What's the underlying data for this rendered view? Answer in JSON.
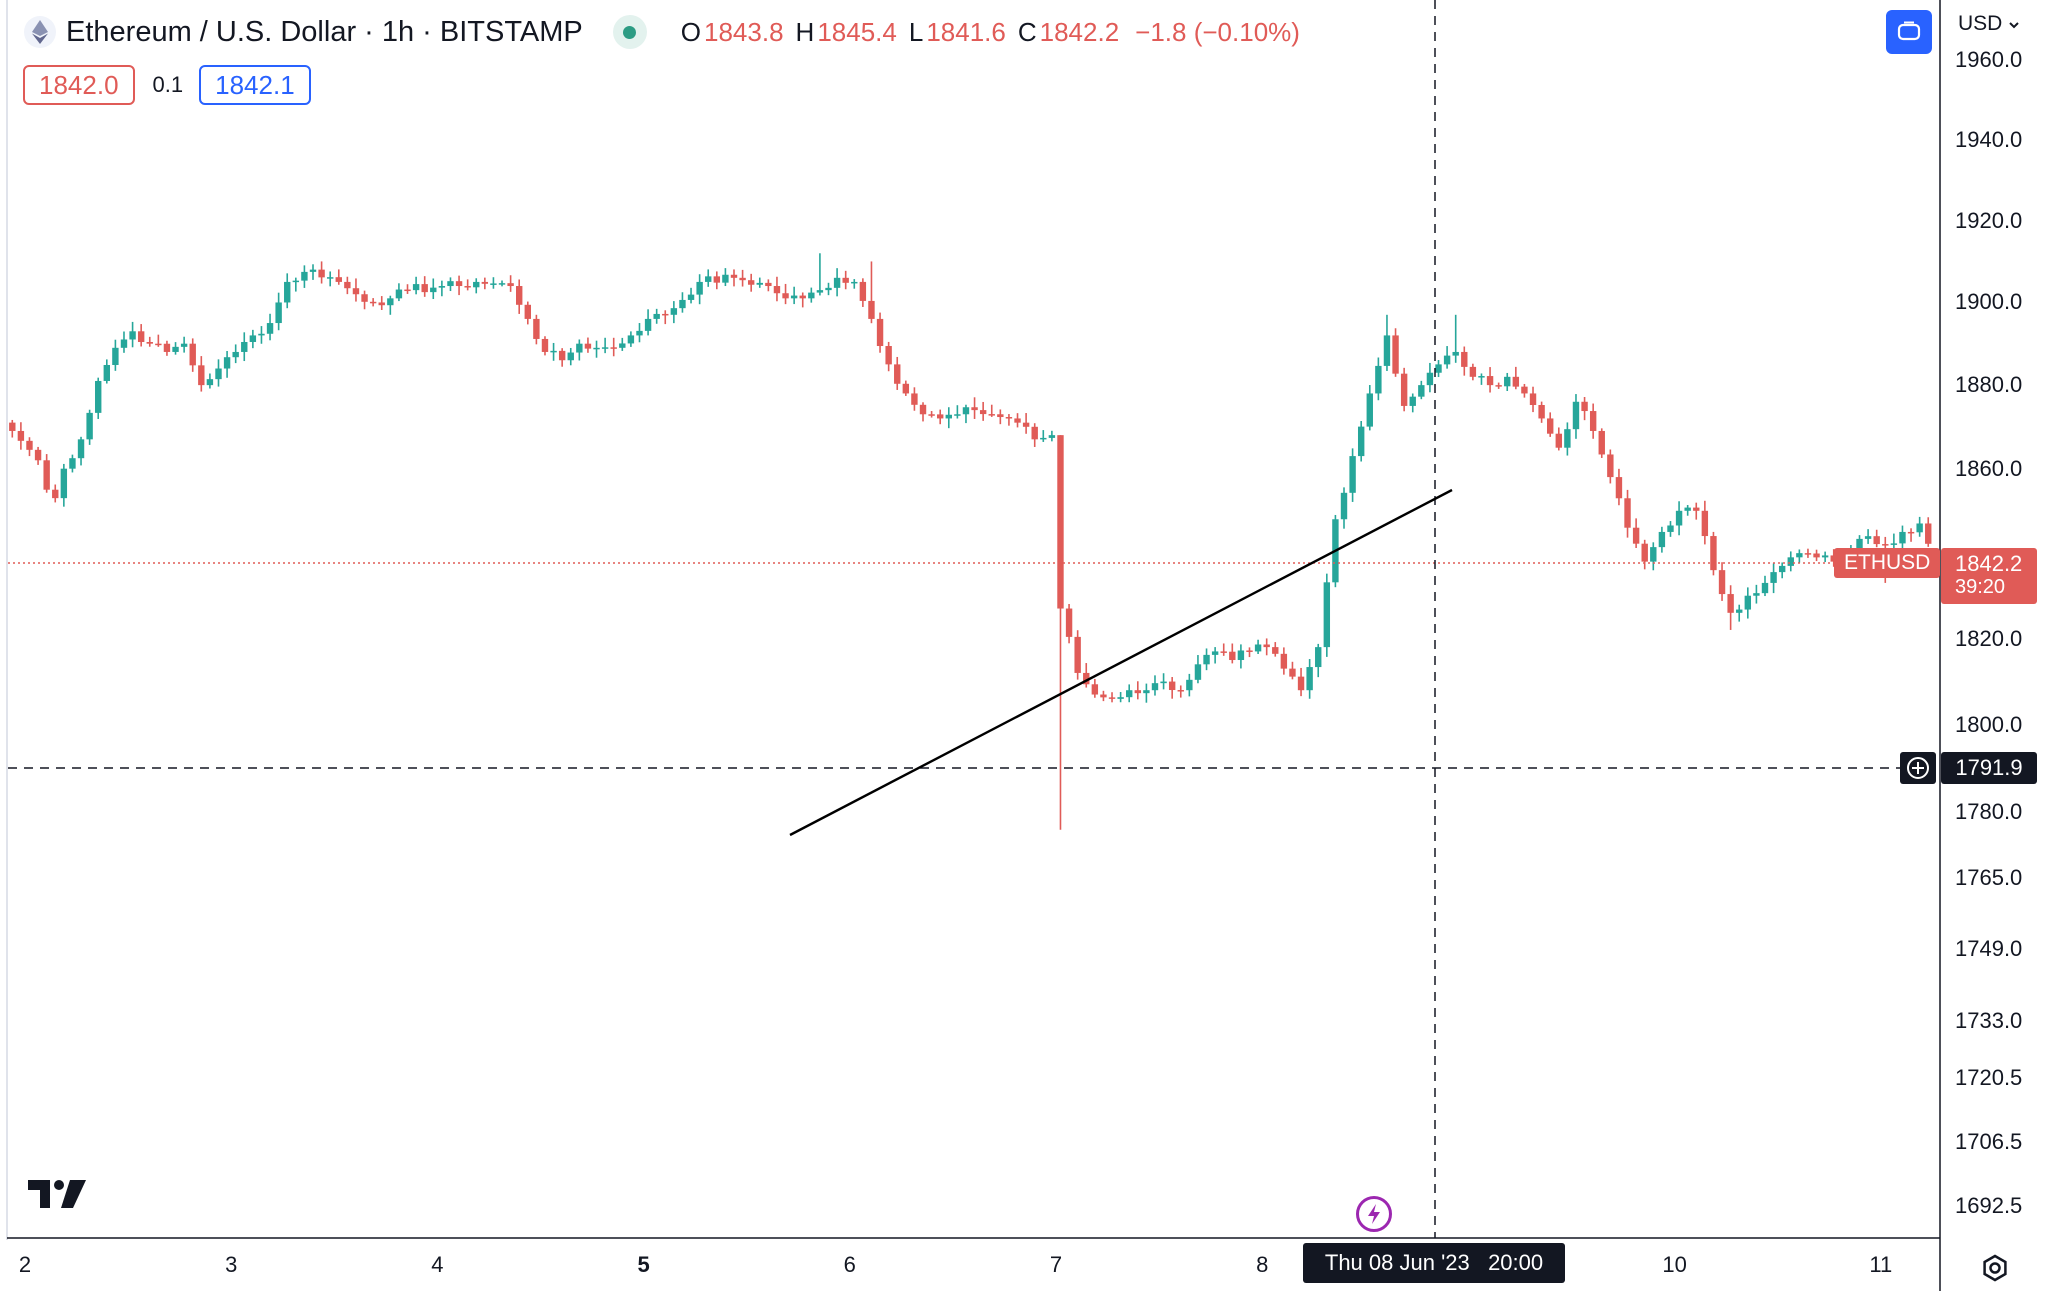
{
  "header": {
    "symbol_title": "Ethereum / U.S. Dollar · 1h · BITSTAMP",
    "ohlc": {
      "open_label": "O",
      "open": "1843.8",
      "high_label": "H",
      "high": "1845.4",
      "low_label": "L",
      "low": "1841.6",
      "close_label": "C",
      "close": "1842.2",
      "change": "−1.8 (−0.10%)"
    },
    "sell_price": "1842.0",
    "spread": "0.1",
    "buy_price": "1842.1",
    "currency": "USD"
  },
  "colors": {
    "up": "#26a69a",
    "down": "#e05b57",
    "accent": "#2962ff",
    "crosshair": "#131722",
    "lightning": "#9c27b0"
  },
  "icons": [
    "ethereum-icon",
    "market-status-dot",
    "fullscreen-icon",
    "chevron-down-icon",
    "tradingview-logo",
    "lightning-icon",
    "plus-icon",
    "settings-icon"
  ],
  "price_axis": {
    "ticks": [
      "1960.0",
      "1940.0",
      "1920.0",
      "1900.0",
      "1880.0",
      "1860.0",
      "1820.0",
      "1800.0",
      "1780.0",
      "1765.0",
      "1749.0",
      "1733.0",
      "1720.5",
      "1706.5",
      "1692.5"
    ],
    "last_price": "1842.2",
    "countdown": "39:20",
    "symbol_label": "ETHUSD",
    "crosshair_price": "1791.9"
  },
  "time_axis": {
    "ticks": [
      {
        "label": "2",
        "bold": false
      },
      {
        "label": "3",
        "bold": false
      },
      {
        "label": "4",
        "bold": false
      },
      {
        "label": "5",
        "bold": true
      },
      {
        "label": "6",
        "bold": false
      },
      {
        "label": "7",
        "bold": false
      },
      {
        "label": "8",
        "bold": false
      },
      {
        "label": "10",
        "bold": false
      },
      {
        "label": "11",
        "bold": false
      }
    ],
    "crosshair_label": "Thu 08 Jun '23   20:00"
  },
  "chart_data": {
    "type": "candlestick",
    "interval": "1h",
    "x_start": "Jun 2 00:00",
    "price_scale": "log",
    "ylim": [
      1686,
      1975
    ],
    "last_price": 1842.2,
    "crosshair": {
      "time": "Thu 08 Jun '23 20:00",
      "price": 1791.9
    },
    "trendline": [
      [
        1776,
        5.7
      ],
      [
        1860,
        8.6
      ]
    ],
    "anchors": [
      [
        0,
        1869
      ],
      [
        3,
        1862
      ],
      [
        4,
        1855
      ],
      [
        5,
        1853
      ],
      [
        6,
        1860
      ],
      [
        8,
        1867
      ],
      [
        10,
        1881
      ],
      [
        12,
        1889
      ],
      [
        14,
        1893
      ],
      [
        16,
        1890
      ],
      [
        18,
        1888
      ],
      [
        20,
        1890
      ],
      [
        22,
        1880
      ],
      [
        24,
        1884
      ],
      [
        26,
        1888
      ],
      [
        28,
        1892
      ],
      [
        30,
        1895
      ],
      [
        32,
        1905
      ],
      [
        35,
        1908
      ],
      [
        38,
        1905
      ],
      [
        40,
        1902
      ],
      [
        42,
        1900
      ],
      [
        44,
        1901
      ],
      [
        46,
        1903
      ],
      [
        50,
        1904
      ],
      [
        52,
        1904
      ],
      [
        54,
        1905
      ],
      [
        58,
        1904
      ],
      [
        60,
        1896
      ],
      [
        62,
        1888
      ],
      [
        64,
        1886
      ],
      [
        66,
        1890
      ],
      [
        68,
        1889
      ],
      [
        70,
        1889
      ],
      [
        72,
        1892
      ],
      [
        74,
        1896
      ],
      [
        76,
        1897
      ],
      [
        80,
        1905
      ],
      [
        84,
        1906
      ],
      [
        88,
        1904
      ],
      [
        90,
        1901
      ],
      [
        92,
        1901
      ],
      [
        94,
        1903
      ],
      [
        96,
        1906
      ],
      [
        98,
        1905
      ],
      [
        100,
        1896
      ],
      [
        102,
        1885
      ],
      [
        104,
        1878
      ],
      [
        106,
        1873
      ],
      [
        108,
        1872
      ],
      [
        110,
        1873
      ],
      [
        112,
        1874
      ],
      [
        114,
        1873
      ],
      [
        116,
        1872
      ],
      [
        118,
        1870
      ],
      [
        119,
        1867
      ],
      [
        121,
        1868
      ],
      [
        122,
        1827
      ],
      [
        124,
        1812
      ],
      [
        126,
        1807
      ],
      [
        128,
        1806
      ],
      [
        130,
        1808
      ],
      [
        132,
        1808
      ],
      [
        134,
        1810
      ],
      [
        136,
        1808
      ],
      [
        138,
        1814
      ],
      [
        140,
        1817
      ],
      [
        142,
        1815
      ],
      [
        144,
        1817
      ],
      [
        146,
        1818
      ],
      [
        148,
        1813
      ],
      [
        150,
        1808
      ],
      [
        152,
        1818
      ],
      [
        154,
        1848
      ],
      [
        156,
        1863
      ],
      [
        158,
        1878
      ],
      [
        160,
        1892
      ],
      [
        162,
        1875
      ],
      [
        164,
        1880
      ],
      [
        166,
        1885
      ],
      [
        168,
        1888
      ],
      [
        170,
        1882
      ],
      [
        172,
        1880
      ],
      [
        174,
        1882
      ],
      [
        176,
        1878
      ],
      [
        178,
        1872
      ],
      [
        180,
        1865
      ],
      [
        182,
        1876
      ],
      [
        184,
        1869
      ],
      [
        186,
        1858
      ],
      [
        188,
        1846
      ],
      [
        190,
        1838
      ],
      [
        192,
        1845
      ],
      [
        194,
        1850
      ],
      [
        196,
        1850
      ],
      [
        198,
        1836
      ],
      [
        200,
        1826
      ],
      [
        202,
        1830
      ],
      [
        204,
        1833
      ],
      [
        206,
        1837
      ],
      [
        208,
        1840
      ],
      [
        210,
        1839
      ],
      [
        212,
        1838
      ],
      [
        214,
        1841
      ],
      [
        216,
        1844
      ],
      [
        218,
        1842
      ],
      [
        220,
        1845
      ],
      [
        222,
        1847
      ],
      [
        223,
        1842.2
      ]
    ]
  }
}
